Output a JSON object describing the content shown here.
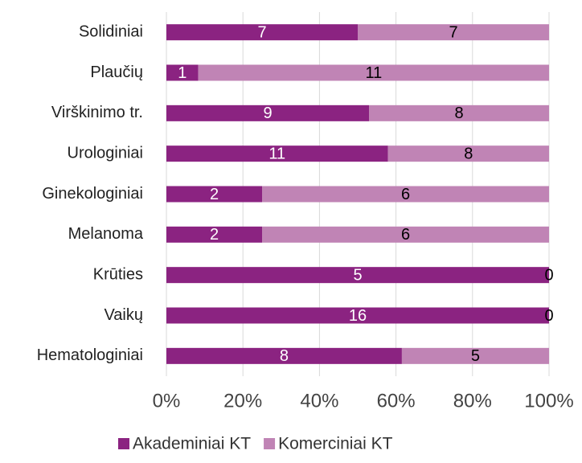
{
  "chart_data": {
    "type": "bar",
    "orientation": "horizontal",
    "stacking": "percent",
    "categories": [
      "Solidiniai",
      "Plaučių",
      "Virškinimo tr.",
      "Urologiniai",
      "Ginekologiniai",
      "Melanoma",
      "Krūties",
      "Vaikų",
      "Hematologiniai"
    ],
    "series": [
      {
        "name": "Akademiniai KT",
        "color": "#8b2381",
        "label_color": "#ffffff",
        "values": [
          7,
          1,
          9,
          11,
          2,
          2,
          5,
          16,
          8
        ]
      },
      {
        "name": "Komerciniai KT",
        "color": "#c084b5",
        "label_color": "#000000",
        "values": [
          7,
          11,
          8,
          8,
          6,
          6,
          0,
          0,
          5
        ]
      }
    ],
    "xlim": [
      0,
      100
    ],
    "xticks": [
      {
        "value": 0,
        "label": "0%"
      },
      {
        "value": 20,
        "label": "20%"
      },
      {
        "value": 40,
        "label": "40%"
      },
      {
        "value": 60,
        "label": "60%"
      },
      {
        "value": 80,
        "label": "80%"
      },
      {
        "value": 100,
        "label": "100%"
      }
    ],
    "grid": true,
    "legend": "bottom"
  }
}
